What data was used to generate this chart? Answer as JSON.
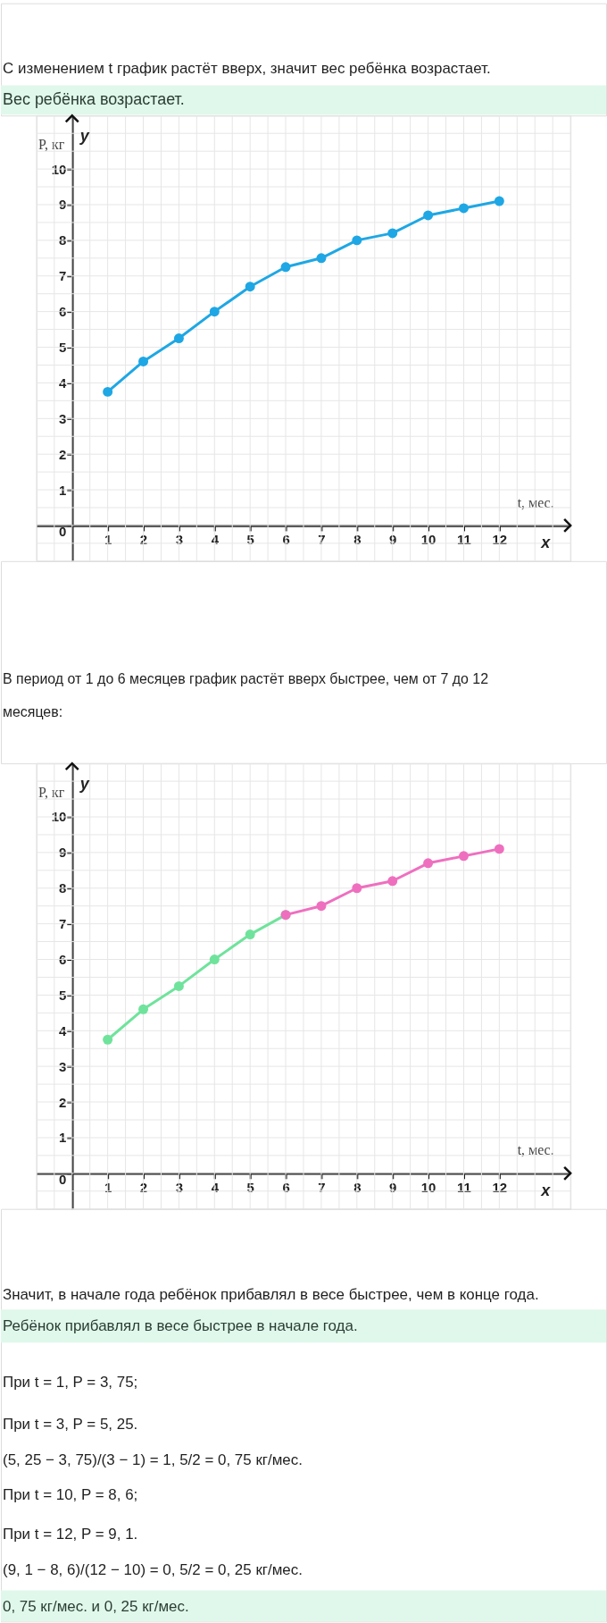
{
  "chart_data": [
    {
      "type": "line",
      "title": "С изменением t график растёт вверх, значит вес ребёнка возрастает.",
      "subtitle": "Вес ребёнка возрастает.",
      "xlabel": "t, мес.",
      "ylabel": "P, кг",
      "x": [
        1,
        2,
        3,
        4,
        5,
        6,
        7,
        8,
        9,
        10,
        11,
        12
      ],
      "values": [
        3.75,
        4.6,
        5.25,
        6,
        6.7,
        7.25,
        7.5,
        8,
        8.2,
        8.7,
        8.9,
        9.1
      ],
      "color": "#1ea7e4",
      "xlim": [
        -1,
        14
      ],
      "ylim": [
        -1,
        11.5
      ],
      "xticks": [
        1,
        2,
        3,
        4,
        5,
        6,
        7,
        8,
        9,
        10,
        11,
        12
      ],
      "yticks": [
        0,
        1,
        2,
        3,
        4,
        5,
        6,
        7,
        8,
        9,
        10
      ],
      "grid": true,
      "marker": "circle",
      "line_style": "solid",
      "annotations": [
        "y",
        "x"
      ]
    },
    {
      "type": "line",
      "title": "В период от 1 до 6 месяцев график растёт вверх быстрее, чем от 7 до 12 месяцев:",
      "xlabel": "t, мес.",
      "ylabel": "P, кг",
      "series": [
        {
          "color": "#6fe39c",
          "x": [
            1,
            2,
            3,
            4,
            5,
            6
          ],
          "values": [
            3.75,
            4.6,
            5.25,
            6,
            6.7,
            7.25
          ]
        },
        {
          "color": "#ef6fbf",
          "x": [
            6,
            7,
            8,
            9,
            10,
            11,
            12
          ],
          "values": [
            7.25,
            7.5,
            8,
            8.2,
            8.7,
            8.9,
            9.1
          ]
        }
      ],
      "xlim": [
        -1,
        14
      ],
      "ylim": [
        -1,
        11.5
      ],
      "xticks": [
        1,
        2,
        3,
        4,
        5,
        6,
        7,
        8,
        9,
        10,
        11,
        12
      ],
      "yticks": [
        0,
        1,
        2,
        3,
        4,
        5,
        6,
        7,
        8,
        9,
        10
      ],
      "grid": true,
      "marker": "circle",
      "line_style": "solid",
      "annotations": [
        "y",
        "x",
        "Значит, в начале года ребёнок прибавлял в весе быстрее, чем в конце года.",
        "Ребёнок прибавлял в весе быстрее в начале года.",
        "При t = 1, P = 3, 75;",
        "При t = 3, P = 5, 25.",
        "(5, 25 − 3, 75)/(3 − 1) = 1, 5/2 = 0, 75 кг/мес.",
        "При t = 10, P = 8, 6;",
        "При t = 12, P = 9, 1.",
        "(9, 1 − 8, 6)/(12 − 10) = 0, 5/2 = 0, 25 кг/мес.",
        "0, 75 кг/мес. и 0, 25 кг/мес."
      ]
    }
  ]
}
